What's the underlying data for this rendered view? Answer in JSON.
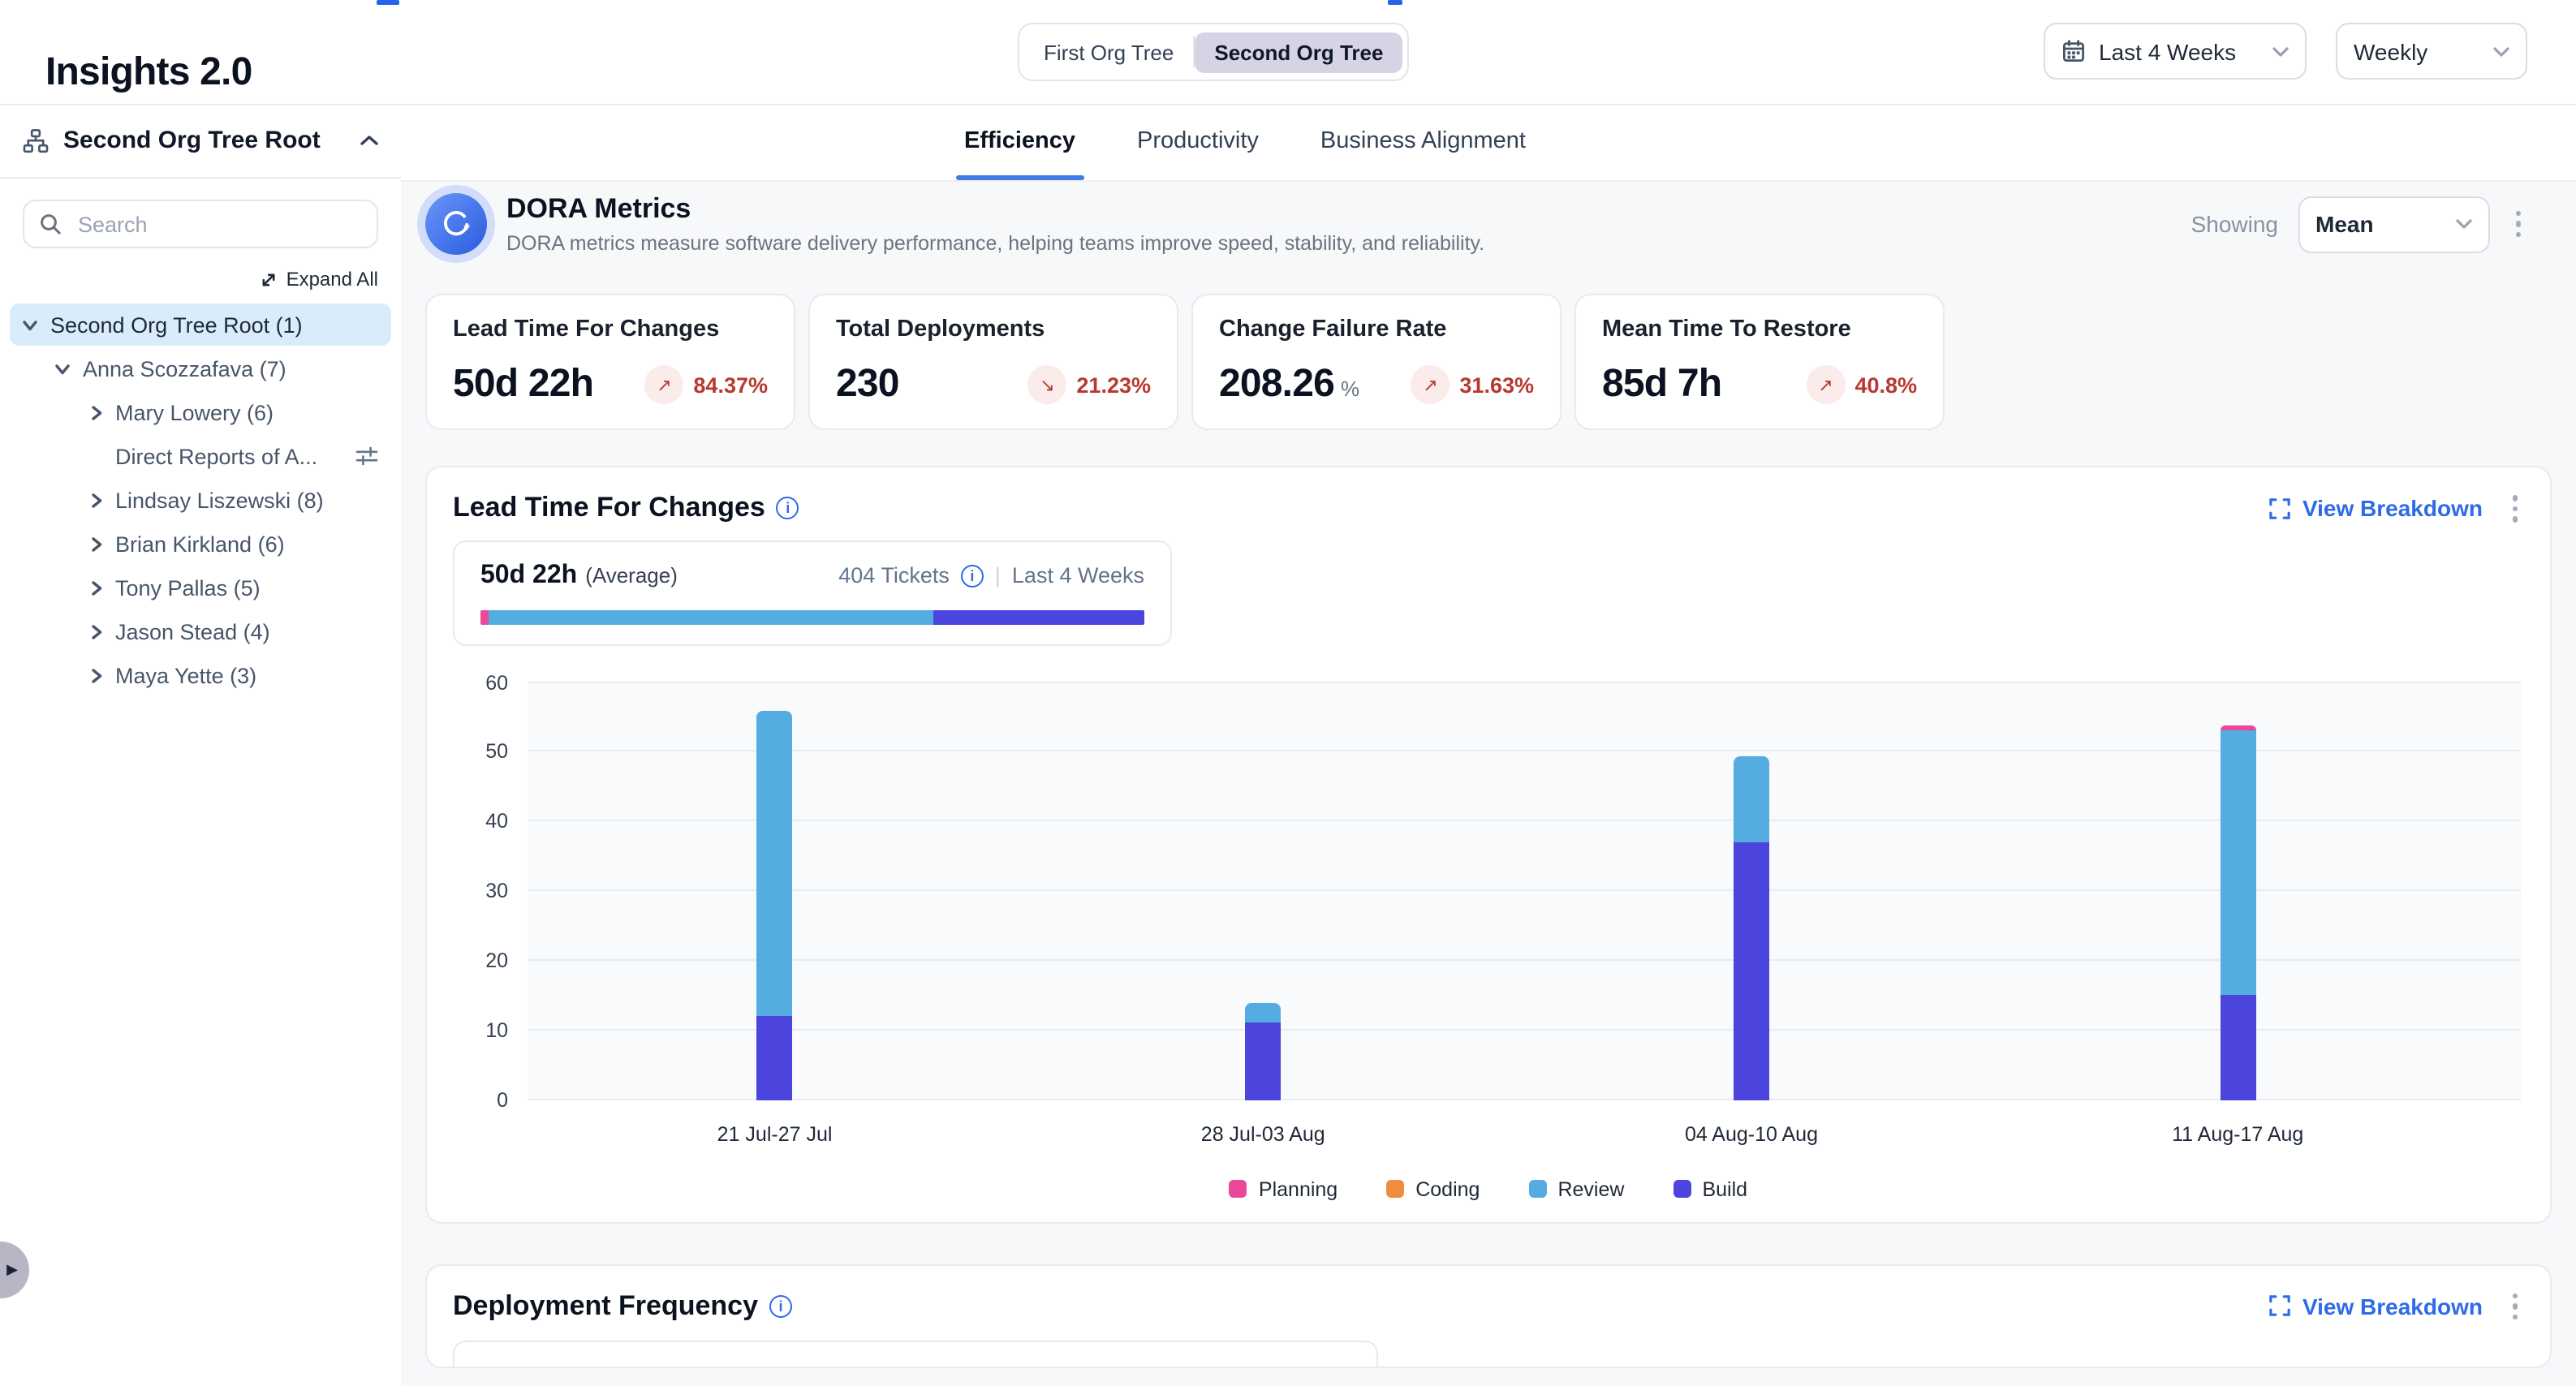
{
  "header": {
    "title": "Insights 2.0",
    "org_toggle": {
      "options": [
        "First Org Tree",
        "Second Org Tree"
      ],
      "selected": "Second Org Tree"
    },
    "date_range_value": "Last 4 Weeks",
    "granularity_value": "Weekly"
  },
  "sidebar": {
    "root_label": "Second Org Tree Root",
    "search_placeholder": "Search",
    "expand_all_label": "Expand All",
    "tree": [
      {
        "label": "Second Org Tree Root (1)",
        "level": 0,
        "chevron": "down",
        "selected": true
      },
      {
        "label": "Anna Scozzafava (7)",
        "level": 1,
        "chevron": "down"
      },
      {
        "label": "Mary Lowery (6)",
        "level": 2,
        "chevron": "right"
      },
      {
        "label": "Direct Reports of A...",
        "level": 2,
        "chevron": "none",
        "trailing_icon": "sliders-icon"
      },
      {
        "label": "Lindsay Liszewski (8)",
        "level": 2,
        "chevron": "right"
      },
      {
        "label": "Brian Kirkland (6)",
        "level": 2,
        "chevron": "right"
      },
      {
        "label": "Tony Pallas (5)",
        "level": 2,
        "chevron": "right"
      },
      {
        "label": "Jason Stead (4)",
        "level": 2,
        "chevron": "right"
      },
      {
        "label": "Maya Yette (3)",
        "level": 2,
        "chevron": "right"
      }
    ]
  },
  "tabs": [
    {
      "label": "Efficiency",
      "active": true
    },
    {
      "label": "Productivity",
      "active": false
    },
    {
      "label": "Business Alignment",
      "active": false
    }
  ],
  "dora": {
    "title": "DORA Metrics",
    "subtitle": "DORA metrics measure software delivery performance, helping teams improve speed, stability, and reliability.",
    "showing_label": "Showing",
    "showing_value": "Mean",
    "cards": [
      {
        "title": "Lead Time For Changes",
        "value": "50d 22h",
        "unit": "",
        "delta": "84.37%",
        "direction": "up"
      },
      {
        "title": "Total Deployments",
        "value": "230",
        "unit": "",
        "delta": "21.23%",
        "direction": "down"
      },
      {
        "title": "Change Failure Rate",
        "value": "208.26",
        "unit": "%",
        "delta": "31.63%",
        "direction": "up"
      },
      {
        "title": "Mean Time To Restore",
        "value": "85d 7h",
        "unit": "",
        "delta": "40.8%",
        "direction": "up"
      }
    ]
  },
  "lead_time_section": {
    "title": "Lead Time For Changes",
    "view_breakdown_label": "View Breakdown",
    "summary": {
      "value": "50d 22h",
      "value_suffix": "(Average)",
      "tickets": "404 Tickets",
      "period": "Last 4 Weeks",
      "bar_segments": [
        {
          "name": "Planning",
          "pct": 1.3
        },
        {
          "name": "Review",
          "pct": 66.9
        },
        {
          "name": "Build",
          "pct": 31.8
        }
      ]
    }
  },
  "chart_data": {
    "type": "bar",
    "stacked": true,
    "title": "Lead Time For Changes",
    "categories": [
      "21 Jul-27 Jul",
      "28 Jul-03 Aug",
      "04 Aug-10 Aug",
      "11 Aug-17 Aug"
    ],
    "series": [
      {
        "name": "Planning",
        "values": [
          0,
          0,
          0,
          0.8
        ]
      },
      {
        "name": "Coding",
        "values": [
          0,
          0,
          0,
          0
        ]
      },
      {
        "name": "Review",
        "values": [
          44,
          3,
          12.5,
          38
        ]
      },
      {
        "name": "Build",
        "values": [
          12,
          11,
          37,
          15
        ]
      }
    ],
    "stack_order_bottom_to_top": [
      "Build",
      "Review",
      "Coding",
      "Planning"
    ],
    "ylim": [
      0,
      60
    ],
    "yticks": [
      0,
      10,
      20,
      30,
      40,
      50,
      60
    ],
    "legend": [
      "Planning",
      "Coding",
      "Review",
      "Build"
    ],
    "legend_position": "bottom",
    "grid": true
  },
  "deployment_section": {
    "title": "Deployment Frequency",
    "view_breakdown_label": "View Breakdown"
  },
  "colors": {
    "planning": "#ec4899",
    "coding": "#f08c3d",
    "review": "#54ace0",
    "build": "#4b44dd",
    "accent_blue": "#2e6be6",
    "delta_red": "#b8382e",
    "delta_bg": "#fbebea",
    "selected_row_bg": "#d9ecf9",
    "toggle_selected_bg": "#d6d4e4"
  }
}
